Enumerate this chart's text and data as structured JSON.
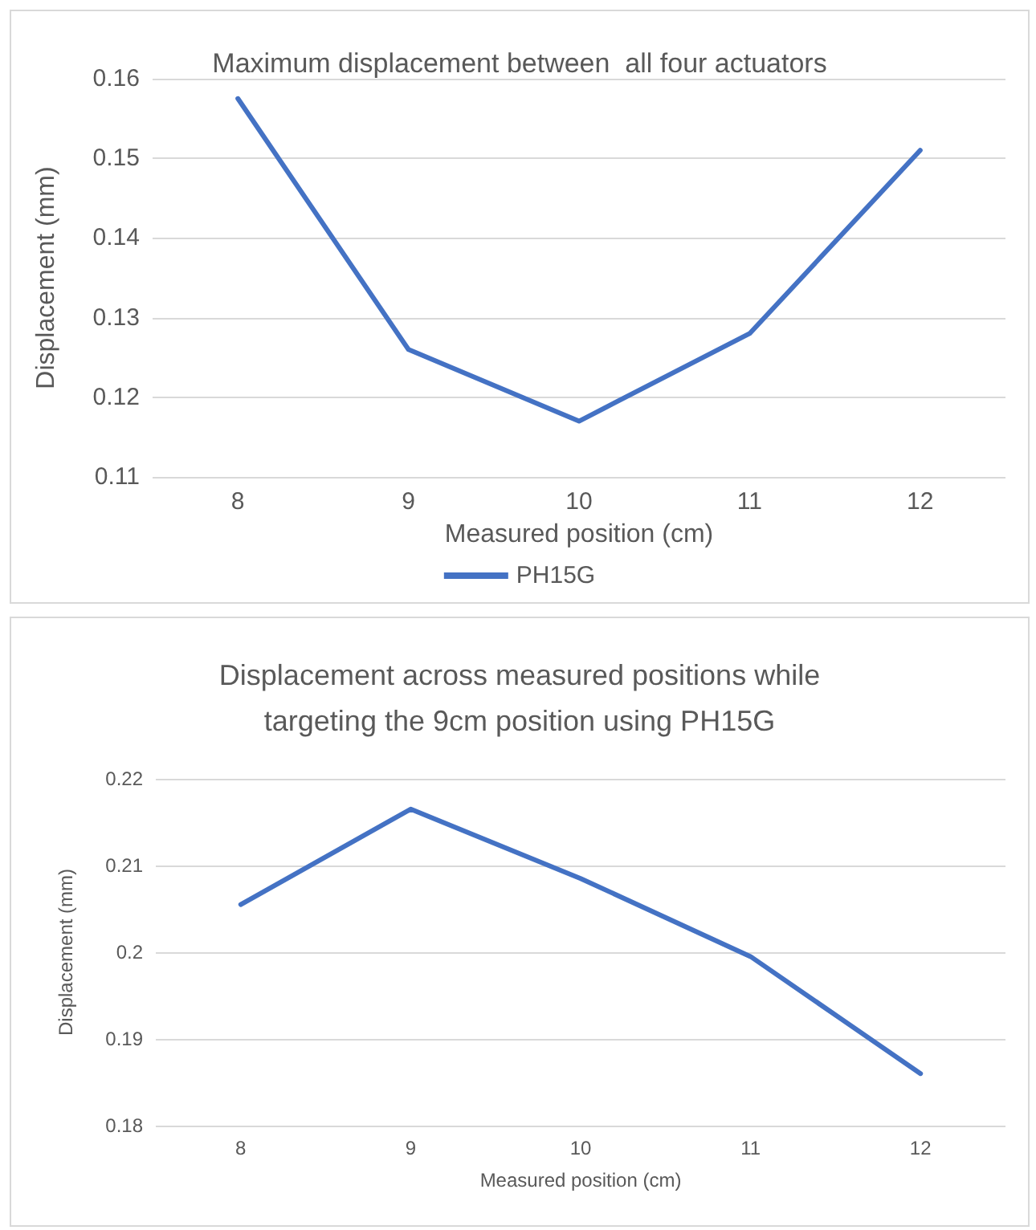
{
  "chart_data": [
    {
      "type": "line",
      "title": "Maximum displacement between  all four actuators",
      "xlabel": "Measured position (cm)",
      "ylabel": "Displacement (mm)",
      "categories": [
        "8",
        "9",
        "10",
        "11",
        "12"
      ],
      "series": [
        {
          "name": "PH15G",
          "color": "#4472c4",
          "values": [
            0.1575,
            0.126,
            0.117,
            0.128,
            0.151
          ]
        }
      ],
      "ylim": [
        0.11,
        0.16
      ],
      "yticks": [
        0.11,
        0.12,
        0.13,
        0.14,
        0.15,
        0.16
      ],
      "grid": "y",
      "legend": "bottom",
      "marker": "none",
      "line_style": "solid"
    },
    {
      "type": "line",
      "title": "Displacement across measured positions while\ntargeting the 9cm position using PH15G",
      "xlabel": "Measured position (cm)",
      "ylabel": "Displacement (mm)",
      "categories": [
        "8",
        "9",
        "10",
        "11",
        "12"
      ],
      "series": [
        {
          "color": "#4472c4",
          "values": [
            0.2055,
            0.2165,
            0.2085,
            0.1995,
            0.186
          ]
        }
      ],
      "ylim": [
        0.18,
        0.22
      ],
      "yticks": [
        0.18,
        0.19,
        {
          "value": 0.2,
          "label": "0.2"
        },
        0.21,
        0.22
      ],
      "grid": "y",
      "legend": false,
      "marker": "none",
      "line_style": "solid"
    }
  ]
}
